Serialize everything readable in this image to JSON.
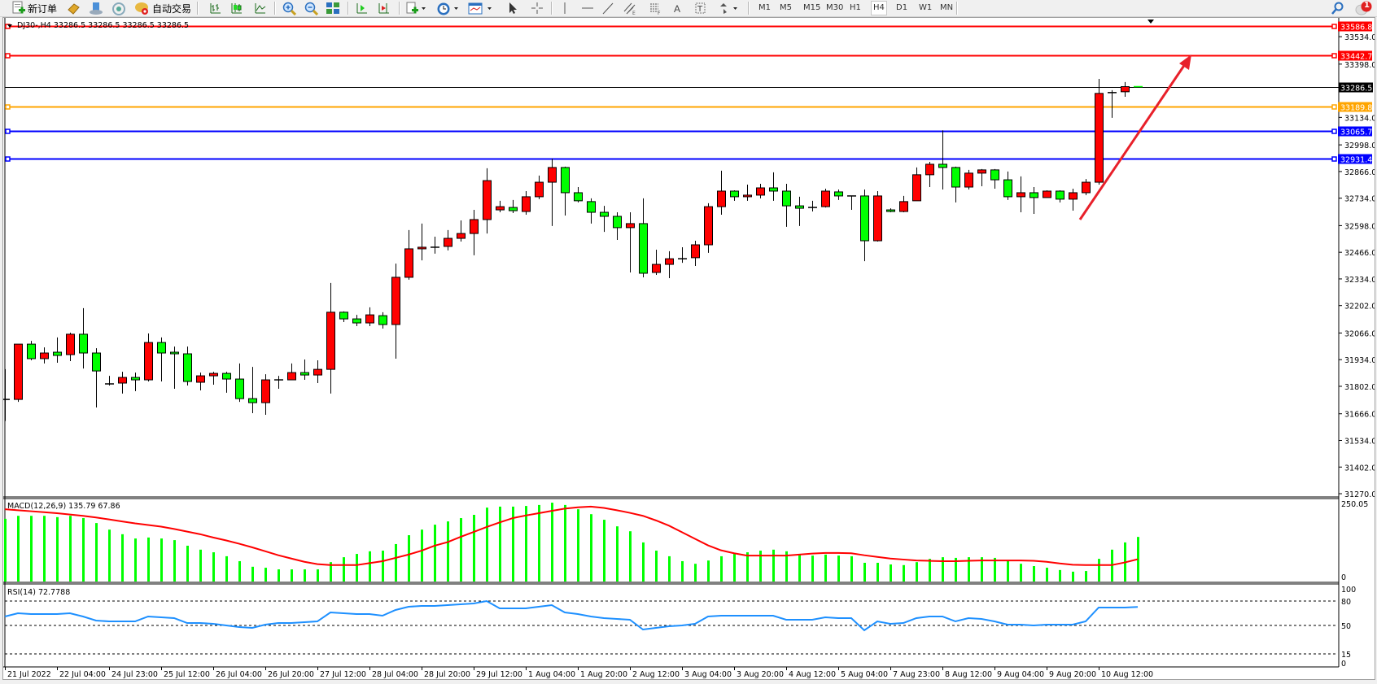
{
  "toolbar": {
    "new_order_label": "新订单",
    "auto_trading_label": "自动交易",
    "timeframes": [
      "M1",
      "M5",
      "M15",
      "M30",
      "H1",
      "H4",
      "D1",
      "W1",
      "MN"
    ],
    "active_timeframe": "H4",
    "notification_count": "1"
  },
  "chart": {
    "info_label": "DJ30-,H4  33286.5 33286.5 33286.5 33286.5",
    "bull_color": "#ff0000",
    "bear_color": "#00ff00",
    "current_price": 33286.5,
    "current_price_label": "33286.5",
    "levels": [
      {
        "price": 33586.8,
        "label": "33586.8",
        "color": "#ff0000"
      },
      {
        "price": 33442.7,
        "label": "33442.7",
        "color": "#ff0000"
      },
      {
        "price": 33189.8,
        "label": "33189.8",
        "color": "#ffa500"
      },
      {
        "price": 33065.7,
        "label": "33065.7",
        "color": "#0000ff"
      },
      {
        "price": 32931.4,
        "label": "32931.4",
        "color": "#0000ff"
      }
    ],
    "arrow_color": "#e8202a",
    "price_ticks": [
      "33534.0",
      "33398.0",
      "33134.0",
      "32998.0",
      "32866.0",
      "32734.0",
      "32598.0",
      "32466.0",
      "32334.0",
      "32202.0",
      "32066.0",
      "31934.0",
      "31802.0",
      "31666.0",
      "31534.0",
      "31402.0",
      "31270.0"
    ],
    "time_labels": [
      "21 Jul 2022",
      "22 Jul 04:00",
      "24 Jul 23:00",
      "25 Jul 12:00",
      "26 Jul 04:00",
      "26 Jul 20:00",
      "27 Jul 12:00",
      "28 Jul 04:00",
      "28 Jul 20:00",
      "29 Jul 12:00",
      "1 Aug 04:00",
      "1 Aug 20:00",
      "2 Aug 12:00",
      "3 Aug 04:00",
      "3 Aug 20:00",
      "4 Aug 12:00",
      "5 Aug 04:00",
      "7 Aug 23:00",
      "8 Aug 12:00",
      "9 Aug 04:00",
      "9 Aug 20:00",
      "10 Aug 12:00"
    ]
  },
  "chart_data": {
    "type": "candlestick",
    "symbol": "DJ30-",
    "timeframe": "H4",
    "ylim": [
      31258,
      33623
    ],
    "ohlc": [
      [
        31737,
        31887,
        31630,
        31737
      ],
      [
        31737,
        32011,
        31725,
        32011
      ],
      [
        32011,
        32027,
        31931,
        31939
      ],
      [
        31939,
        31995,
        31915,
        31967
      ],
      [
        31971,
        32044,
        31919,
        31955
      ],
      [
        31959,
        32068,
        31927,
        32060
      ],
      [
        32060,
        32189,
        31890,
        31967
      ],
      [
        31967,
        31991,
        31697,
        31878
      ],
      [
        31814,
        31854,
        31806,
        31814
      ],
      [
        31818,
        31874,
        31766,
        31846
      ],
      [
        31846,
        31870,
        31778,
        31834
      ],
      [
        31834,
        32064,
        31826,
        32019
      ],
      [
        32019,
        32044,
        31826,
        31967
      ],
      [
        31971,
        31999,
        31790,
        31963
      ],
      [
        31963,
        31999,
        31806,
        31826
      ],
      [
        31822,
        31870,
        31782,
        31854
      ],
      [
        31854,
        31874,
        31810,
        31866
      ],
      [
        31866,
        31874,
        31770,
        31838
      ],
      [
        31838,
        31915,
        31725,
        31741
      ],
      [
        31741,
        31898,
        31669,
        31721
      ],
      [
        31721,
        31862,
        31661,
        31834
      ],
      [
        31834,
        31854,
        31790,
        31834
      ],
      [
        31834,
        31915,
        31834,
        31870
      ],
      [
        31870,
        31935,
        31834,
        31858
      ],
      [
        31858,
        31931,
        31818,
        31886
      ],
      [
        31886,
        32314,
        31766,
        32169
      ],
      [
        32169,
        32173,
        32120,
        32136
      ],
      [
        32136,
        32156,
        32100,
        32116
      ],
      [
        32116,
        32193,
        32100,
        32156
      ],
      [
        32152,
        32169,
        32088,
        32108
      ],
      [
        32108,
        32410,
        31939,
        32342
      ],
      [
        32342,
        32576,
        32330,
        32483
      ],
      [
        32483,
        32608,
        32426,
        32491
      ],
      [
        32491,
        32543,
        32459,
        32491
      ],
      [
        32495,
        32576,
        32475,
        32535
      ],
      [
        32535,
        32624,
        32519,
        32559
      ],
      [
        32559,
        32676,
        32451,
        32628
      ],
      [
        32628,
        32882,
        32559,
        32821
      ],
      [
        32676,
        32721,
        32664,
        32692
      ],
      [
        32688,
        32725,
        32660,
        32672
      ],
      [
        32668,
        32769,
        32652,
        32741
      ],
      [
        32741,
        32846,
        32729,
        32813
      ],
      [
        32813,
        32930,
        32596,
        32886
      ],
      [
        32886,
        32890,
        32648,
        32761
      ],
      [
        32761,
        32789,
        32713,
        32721
      ],
      [
        32717,
        32733,
        32608,
        32664
      ],
      [
        32664,
        32696,
        32567,
        32644
      ],
      [
        32644,
        32664,
        32527,
        32588
      ],
      [
        32588,
        32664,
        32366,
        32608
      ],
      [
        32608,
        32733,
        32342,
        32362
      ],
      [
        32366,
        32479,
        32354,
        32406
      ],
      [
        32406,
        32471,
        32338,
        32434
      ],
      [
        32434,
        32491,
        32414,
        32434
      ],
      [
        32439,
        32523,
        32398,
        32503
      ],
      [
        32503,
        32709,
        32463,
        32692
      ],
      [
        32692,
        32870,
        32652,
        32769
      ],
      [
        32769,
        32773,
        32721,
        32741
      ],
      [
        32741,
        32801,
        32721,
        32749
      ],
      [
        32749,
        32805,
        32733,
        32785
      ],
      [
        32785,
        32862,
        32721,
        32769
      ],
      [
        32769,
        32805,
        32592,
        32696
      ],
      [
        32696,
        32741,
        32596,
        32684
      ],
      [
        32688,
        32721,
        32668,
        32688
      ],
      [
        32692,
        32781,
        32688,
        32769
      ],
      [
        32765,
        32777,
        32725,
        32745
      ],
      [
        32745,
        32745,
        32676,
        32745
      ],
      [
        32745,
        32777,
        32422,
        32523
      ],
      [
        32523,
        32769,
        32519,
        32745
      ],
      [
        32676,
        32684,
        32664,
        32668
      ],
      [
        32668,
        32745,
        32664,
        32717
      ],
      [
        32721,
        32886,
        32721,
        32850
      ],
      [
        32850,
        32914,
        32789,
        32902
      ],
      [
        32902,
        33070,
        32777,
        32886
      ],
      [
        32886,
        32890,
        32713,
        32789
      ],
      [
        32789,
        32874,
        32777,
        32858
      ],
      [
        32858,
        32878,
        32793,
        32874
      ],
      [
        32874,
        32878,
        32781,
        32825
      ],
      [
        32825,
        32866,
        32725,
        32741
      ],
      [
        32741,
        32842,
        32664,
        32761
      ],
      [
        32761,
        32789,
        32656,
        32737
      ],
      [
        32737,
        32773,
        32737,
        32769
      ],
      [
        32769,
        32773,
        32713,
        32729
      ],
      [
        32729,
        32781,
        32672,
        32761
      ],
      [
        32761,
        32829,
        32749,
        32813
      ],
      [
        32813,
        33325,
        32801,
        33253
      ],
      [
        33257,
        33269,
        33132,
        33257
      ],
      [
        33261,
        33309,
        33236,
        33286.5
      ],
      [
        33286.5,
        33286.5,
        33286.5,
        33286.5
      ]
    ],
    "macd": {
      "label": "MACD(12,26,9) 135.79 67.86",
      "ylim": [
        0,
        250.05
      ],
      "tick_labels": [
        "250.05",
        "0"
      ],
      "histogram_color": "#00ff00",
      "signal_color": "#ff0000",
      "histogram": [
        191,
        200,
        200,
        200,
        196,
        200,
        193,
        178,
        158,
        144,
        131,
        134,
        131,
        126,
        109,
        97,
        89,
        77,
        62,
        45,
        42,
        37,
        37,
        37,
        37,
        59,
        74,
        84,
        92,
        94,
        114,
        141,
        158,
        173,
        183,
        193,
        203,
        225,
        228,
        228,
        230,
        233,
        240,
        233,
        220,
        205,
        188,
        168,
        153,
        119,
        94,
        77,
        62,
        54,
        64,
        77,
        84,
        89,
        94,
        97,
        92,
        82,
        79,
        82,
        79,
        77,
        57,
        57,
        52,
        50,
        59,
        69,
        74,
        72,
        74,
        74,
        72,
        62,
        54,
        47,
        42,
        35,
        30,
        32,
        69,
        97,
        119,
        135.79
      ],
      "signal": [
        220,
        217,
        214,
        211,
        208,
        204,
        200,
        195,
        189,
        183,
        177,
        172,
        167,
        160,
        152,
        144,
        134,
        125,
        115,
        104,
        92,
        80,
        70,
        60,
        53,
        50,
        50,
        50,
        56,
        62,
        72,
        82,
        94,
        109,
        120,
        136,
        151,
        166,
        180,
        193,
        201,
        208,
        215,
        222,
        226,
        228,
        224,
        217,
        209,
        200,
        186,
        170,
        150,
        130,
        110,
        95,
        86,
        79,
        79,
        79,
        79,
        82,
        85,
        87,
        87,
        86,
        80,
        75,
        70,
        67,
        64,
        63,
        62,
        62,
        63,
        64,
        64,
        64,
        64,
        63,
        60,
        55,
        51,
        50,
        50,
        50,
        58,
        67.86
      ]
    },
    "rsi": {
      "label": "RSI(14) 72.7788",
      "ylim": [
        0,
        100
      ],
      "levels": [
        80,
        50,
        15
      ],
      "tick_labels": [
        "100",
        "80",
        "50",
        "15",
        "0"
      ],
      "color": "#1e90ff",
      "values": [
        61,
        65,
        64,
        64,
        64,
        65,
        61,
        56,
        55,
        55,
        55,
        61,
        60,
        59,
        53,
        53,
        52,
        50,
        48,
        47,
        51,
        53,
        53,
        54,
        55,
        66,
        65,
        64,
        64,
        62,
        69,
        73,
        74,
        74,
        75,
        76,
        77,
        80,
        71,
        71,
        71,
        73,
        75,
        66,
        64,
        61,
        59,
        58,
        57,
        45,
        47,
        49,
        50,
        52,
        61,
        62,
        62,
        62,
        62,
        62,
        57,
        57,
        57,
        60,
        59,
        59,
        44,
        55,
        52,
        53,
        59,
        61,
        61,
        55,
        59,
        58,
        55,
        51,
        51,
        50,
        51,
        51,
        51,
        55,
        72,
        72,
        72,
        72.7788
      ]
    }
  }
}
